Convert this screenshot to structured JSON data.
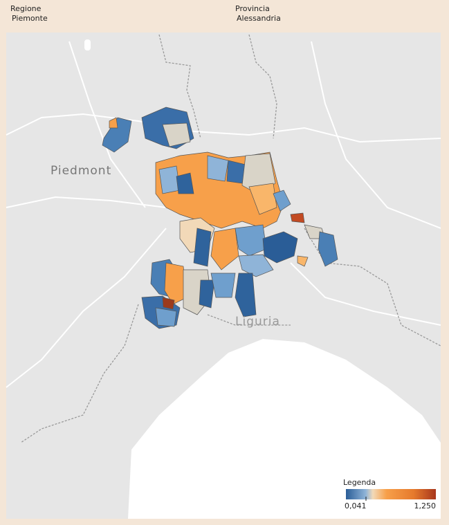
{
  "filters": {
    "region": {
      "label": "Regione",
      "value": "Piemonte"
    },
    "province": {
      "label": "Provincia",
      "value": "Alessandria"
    }
  },
  "map": {
    "place_labels": [
      "Piedmont",
      "Liguria"
    ]
  },
  "legend": {
    "title": "Legenda",
    "min_label": "0,041",
    "max_label": "1,250"
  }
}
